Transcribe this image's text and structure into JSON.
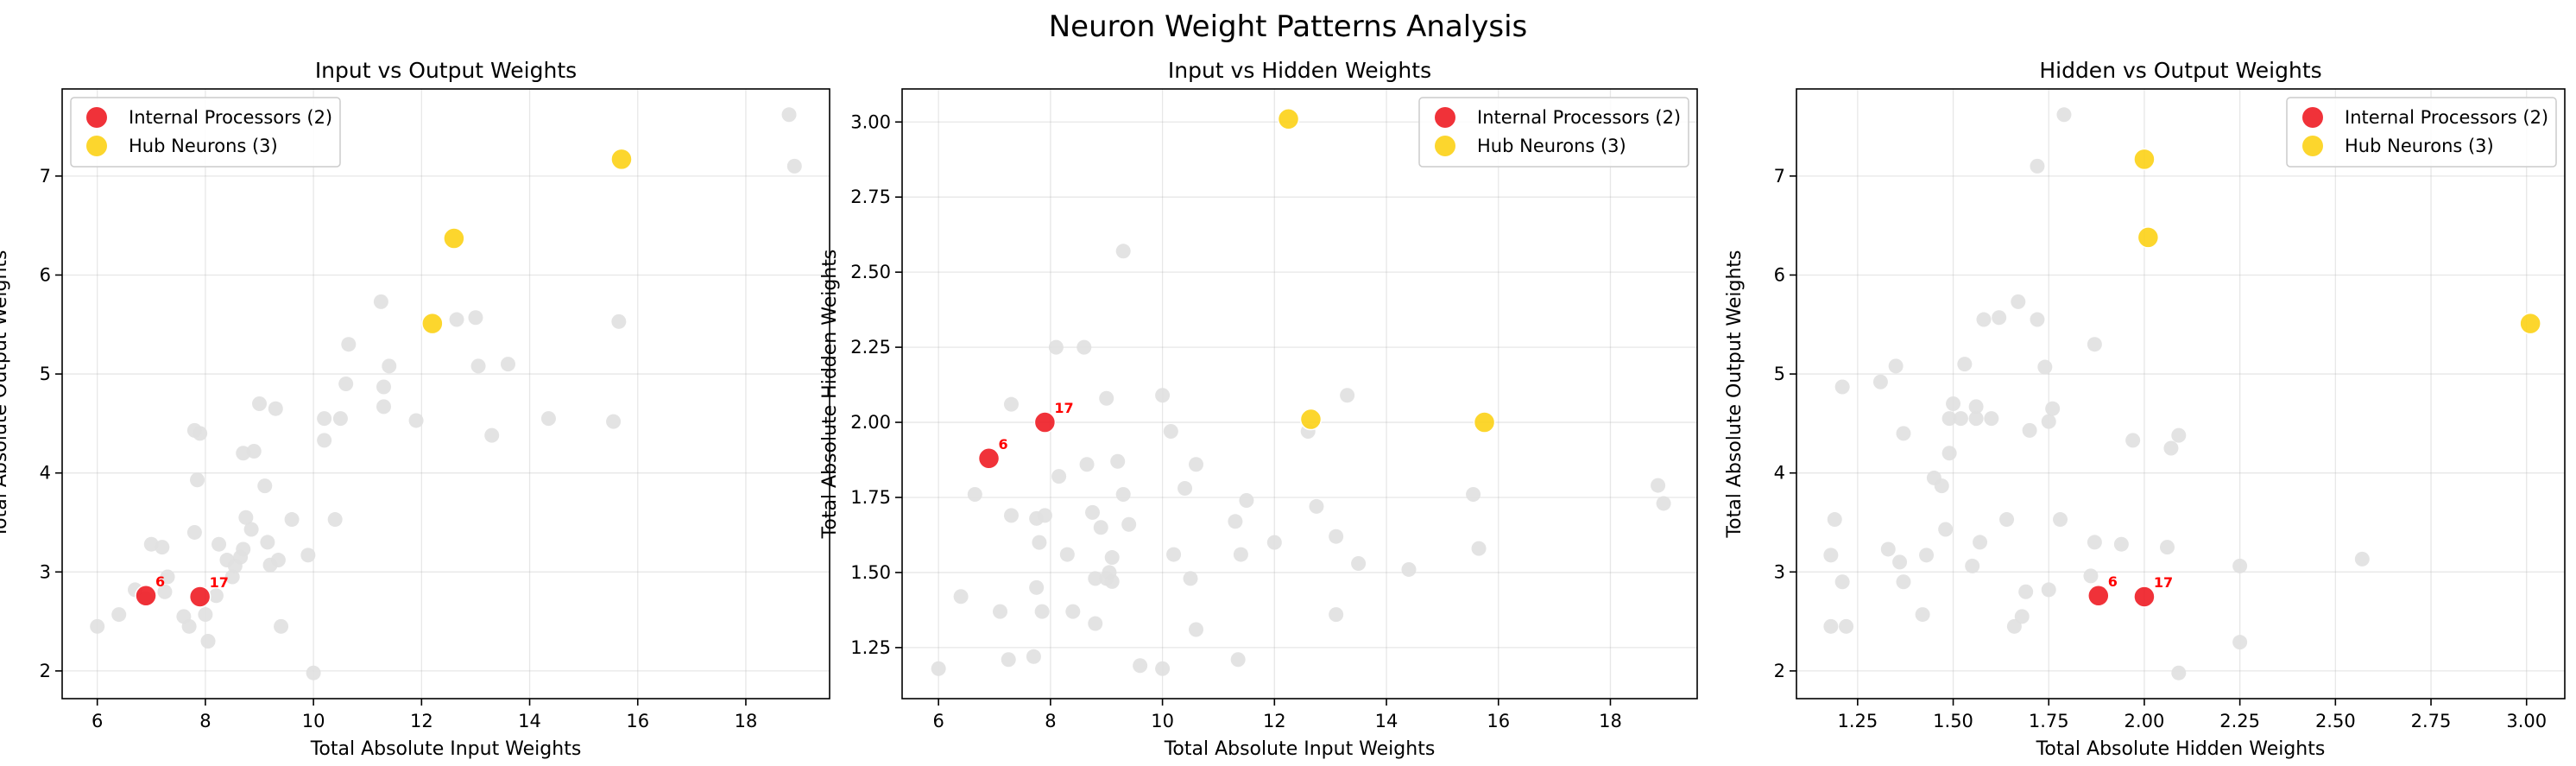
{
  "figure": {
    "title": "Neuron Weight Patterns Analysis"
  },
  "colors": {
    "background": "#e0e0e0",
    "internal": "#ee1c24",
    "hub": "#fcd116"
  },
  "chart_data": [
    {
      "type": "scatter",
      "title": "Input vs Output Weights",
      "xlabel": "Total Absolute Input Weights",
      "ylabel": "Total Absolute Output Weights",
      "xlim": [
        5.35,
        19.55
      ],
      "ylim": [
        1.72,
        7.88
      ],
      "xticks": [
        6,
        8,
        10,
        12,
        14,
        16,
        18
      ],
      "xtick_labels": [
        "6",
        "8",
        "10",
        "12",
        "14",
        "16",
        "18"
      ],
      "yticks": [
        2,
        3,
        4,
        5,
        6,
        7
      ],
      "ytick_labels": [
        "2",
        "3",
        "4",
        "5",
        "6",
        "7"
      ],
      "grid": true,
      "legend_position": "top-left",
      "series": [
        {
          "role": "background",
          "points": [
            [
              6.0,
              2.45
            ],
            [
              6.4,
              2.57
            ],
            [
              6.7,
              2.82
            ],
            [
              6.9,
              2.73
            ],
            [
              7.0,
              3.28
            ],
            [
              7.2,
              3.25
            ],
            [
              7.3,
              2.95
            ],
            [
              7.25,
              2.8
            ],
            [
              7.6,
              2.55
            ],
            [
              7.7,
              2.45
            ],
            [
              7.8,
              3.4
            ],
            [
              7.8,
              4.43
            ],
            [
              7.9,
              4.4
            ],
            [
              7.85,
              3.93
            ],
            [
              8.0,
              2.57
            ],
            [
              8.05,
              2.3
            ],
            [
              8.2,
              2.76
            ],
            [
              8.25,
              3.28
            ],
            [
              8.4,
              3.12
            ],
            [
              8.5,
              2.95
            ],
            [
              8.55,
              3.06
            ],
            [
              8.65,
              3.15
            ],
            [
              8.7,
              3.23
            ],
            [
              8.75,
              3.55
            ],
            [
              8.7,
              4.2
            ],
            [
              8.9,
              4.22
            ],
            [
              8.85,
              3.43
            ],
            [
              9.0,
              4.7
            ],
            [
              9.1,
              3.87
            ],
            [
              9.15,
              3.3
            ],
            [
              9.2,
              3.07
            ],
            [
              9.3,
              4.65
            ],
            [
              9.4,
              2.45
            ],
            [
              9.35,
              3.12
            ],
            [
              9.6,
              3.53
            ],
            [
              9.9,
              3.17
            ],
            [
              10.0,
              1.98
            ],
            [
              10.2,
              4.33
            ],
            [
              10.2,
              4.55
            ],
            [
              10.4,
              3.53
            ],
            [
              10.5,
              4.55
            ],
            [
              10.6,
              4.9
            ],
            [
              10.65,
              5.3
            ],
            [
              11.25,
              5.73
            ],
            [
              11.3,
              4.67
            ],
            [
              11.3,
              4.87
            ],
            [
              11.4,
              5.08
            ],
            [
              11.9,
              4.53
            ],
            [
              12.65,
              5.55
            ],
            [
              13.0,
              5.57
            ],
            [
              13.05,
              5.08
            ],
            [
              13.3,
              4.38
            ],
            [
              13.6,
              5.1
            ],
            [
              14.35,
              4.55
            ],
            [
              15.55,
              4.52
            ],
            [
              15.65,
              5.53
            ],
            [
              18.8,
              7.62
            ],
            [
              18.9,
              7.1
            ]
          ]
        },
        {
          "name": "Internal Processors (2)",
          "role": "internal",
          "points": [
            [
              6.9,
              2.76
            ],
            [
              7.9,
              2.75
            ]
          ],
          "labels": [
            "6",
            "17"
          ]
        },
        {
          "name": "Hub Neurons (3)",
          "role": "hub",
          "points": [
            [
              12.2,
              5.51
            ],
            [
              12.6,
              6.37
            ],
            [
              15.7,
              7.17
            ]
          ]
        }
      ]
    },
    {
      "type": "scatter",
      "title": "Input vs Hidden Weights",
      "xlabel": "Total Absolute Input Weights",
      "ylabel": "Total Absolute Hidden Weights",
      "xlim": [
        5.35,
        19.55
      ],
      "ylim": [
        1.08,
        3.11
      ],
      "xticks": [
        6,
        8,
        10,
        12,
        14,
        16,
        18
      ],
      "xtick_labels": [
        "6",
        "8",
        "10",
        "12",
        "14",
        "16",
        "18"
      ],
      "yticks": [
        1.25,
        1.5,
        1.75,
        2.0,
        2.25,
        2.5,
        2.75,
        3.0
      ],
      "ytick_labels": [
        "1.25",
        "1.50",
        "1.75",
        "2.00",
        "2.25",
        "2.50",
        "2.75",
        "3.00"
      ],
      "grid": true,
      "legend_position": "top-right",
      "series": [
        {
          "role": "background",
          "points": [
            [
              6.0,
              1.18
            ],
            [
              6.4,
              1.42
            ],
            [
              6.65,
              1.76
            ],
            [
              7.1,
              1.37
            ],
            [
              7.3,
              2.06
            ],
            [
              7.3,
              1.69
            ],
            [
              7.25,
              1.21
            ],
            [
              7.7,
              1.22
            ],
            [
              7.75,
              1.45
            ],
            [
              7.75,
              1.68
            ],
            [
              7.8,
              1.6
            ],
            [
              7.9,
              1.69
            ],
            [
              7.85,
              1.37
            ],
            [
              8.1,
              2.25
            ],
            [
              8.15,
              1.82
            ],
            [
              8.3,
              1.56
            ],
            [
              8.4,
              1.37
            ],
            [
              8.6,
              2.25
            ],
            [
              8.65,
              1.86
            ],
            [
              8.75,
              1.7
            ],
            [
              8.8,
              1.33
            ],
            [
              8.8,
              1.48
            ],
            [
              8.9,
              1.65
            ],
            [
              9.0,
              2.08
            ],
            [
              9.0,
              1.48
            ],
            [
              9.05,
              1.5
            ],
            [
              9.1,
              1.47
            ],
            [
              9.1,
              1.55
            ],
            [
              9.2,
              1.87
            ],
            [
              9.3,
              2.57
            ],
            [
              9.3,
              1.76
            ],
            [
              9.4,
              1.66
            ],
            [
              9.6,
              1.19
            ],
            [
              10.0,
              2.09
            ],
            [
              10.0,
              1.18
            ],
            [
              10.15,
              1.97
            ],
            [
              10.2,
              1.56
            ],
            [
              10.4,
              1.78
            ],
            [
              10.5,
              1.48
            ],
            [
              10.6,
              1.86
            ],
            [
              10.6,
              1.31
            ],
            [
              11.3,
              1.67
            ],
            [
              11.35,
              1.21
            ],
            [
              11.5,
              1.74
            ],
            [
              11.4,
              1.56
            ],
            [
              12.0,
              1.6
            ],
            [
              12.6,
              1.97
            ],
            [
              12.75,
              1.72
            ],
            [
              13.1,
              1.36
            ],
            [
              13.1,
              1.62
            ],
            [
              13.3,
              2.09
            ],
            [
              13.5,
              1.53
            ],
            [
              14.4,
              1.51
            ],
            [
              15.55,
              1.76
            ],
            [
              15.65,
              1.58
            ],
            [
              18.85,
              1.79
            ],
            [
              18.95,
              1.73
            ]
          ]
        },
        {
          "name": "Internal Processors (2)",
          "role": "internal",
          "points": [
            [
              6.9,
              1.88
            ],
            [
              7.9,
              2.0
            ]
          ],
          "labels": [
            "6",
            "17"
          ]
        },
        {
          "name": "Hub Neurons (3)",
          "role": "hub",
          "points": [
            [
              12.25,
              3.01
            ],
            [
              12.65,
              2.01
            ],
            [
              15.75,
              2.0
            ]
          ]
        }
      ]
    },
    {
      "type": "scatter",
      "title": "Hidden vs Output Weights",
      "xlabel": "Total Absolute Hidden Weights",
      "ylabel": "Total Absolute Output Weights",
      "xlim": [
        1.09,
        3.1
      ],
      "ylim": [
        1.72,
        7.88
      ],
      "xticks": [
        1.25,
        1.5,
        1.75,
        2.0,
        2.25,
        2.5,
        2.75,
        3.0
      ],
      "xtick_labels": [
        "1.25",
        "1.50",
        "1.75",
        "2.00",
        "2.25",
        "2.50",
        "2.75",
        "3.00"
      ],
      "yticks": [
        2,
        3,
        4,
        5,
        6,
        7
      ],
      "ytick_labels": [
        "2",
        "3",
        "4",
        "5",
        "6",
        "7"
      ],
      "grid": true,
      "legend_position": "top-right",
      "series": [
        {
          "role": "background",
          "points": [
            [
              1.18,
              2.45
            ],
            [
              1.18,
              3.17
            ],
            [
              1.19,
              3.53
            ],
            [
              1.21,
              2.9
            ],
            [
              1.21,
              4.87
            ],
            [
              1.22,
              2.45
            ],
            [
              1.31,
              4.92
            ],
            [
              1.33,
              3.23
            ],
            [
              1.35,
              5.08
            ],
            [
              1.36,
              3.1
            ],
            [
              1.37,
              4.4
            ],
            [
              1.37,
              2.9
            ],
            [
              1.42,
              2.57
            ],
            [
              1.43,
              3.17
            ],
            [
              1.45,
              3.95
            ],
            [
              1.47,
              3.87
            ],
            [
              1.48,
              3.43
            ],
            [
              1.49,
              4.2
            ],
            [
              1.49,
              4.55
            ],
            [
              1.5,
              4.7
            ],
            [
              1.52,
              4.55
            ],
            [
              1.53,
              5.1
            ],
            [
              1.55,
              3.06
            ],
            [
              1.56,
              4.67
            ],
            [
              1.56,
              4.55
            ],
            [
              1.57,
              3.3
            ],
            [
              1.58,
              5.55
            ],
            [
              1.6,
              4.55
            ],
            [
              1.62,
              5.57
            ],
            [
              1.64,
              3.53
            ],
            [
              1.66,
              2.45
            ],
            [
              1.67,
              5.73
            ],
            [
              1.68,
              2.55
            ],
            [
              1.69,
              2.8
            ],
            [
              1.7,
              4.43
            ],
            [
              1.72,
              7.1
            ],
            [
              1.72,
              5.55
            ],
            [
              1.74,
              5.07
            ],
            [
              1.75,
              4.52
            ],
            [
              1.76,
              4.65
            ],
            [
              1.75,
              2.82
            ],
            [
              1.78,
              3.53
            ],
            [
              1.79,
              7.62
            ],
            [
              1.87,
              5.3
            ],
            [
              1.87,
              3.3
            ],
            [
              1.86,
              2.96
            ],
            [
              1.94,
              3.28
            ],
            [
              1.97,
              4.33
            ],
            [
              2.06,
              3.25
            ],
            [
              2.07,
              4.25
            ],
            [
              2.09,
              4.38
            ],
            [
              2.09,
              1.98
            ],
            [
              2.25,
              3.06
            ],
            [
              2.25,
              2.29
            ],
            [
              2.57,
              3.13
            ]
          ]
        },
        {
          "name": "Internal Processors (2)",
          "role": "internal",
          "points": [
            [
              1.88,
              2.76
            ],
            [
              2.0,
              2.75
            ]
          ],
          "labels": [
            "6",
            "17"
          ]
        },
        {
          "name": "Hub Neurons (3)",
          "role": "hub",
          "points": [
            [
              2.0,
              7.17
            ],
            [
              2.01,
              6.38
            ],
            [
              3.01,
              5.51
            ]
          ]
        }
      ]
    }
  ]
}
